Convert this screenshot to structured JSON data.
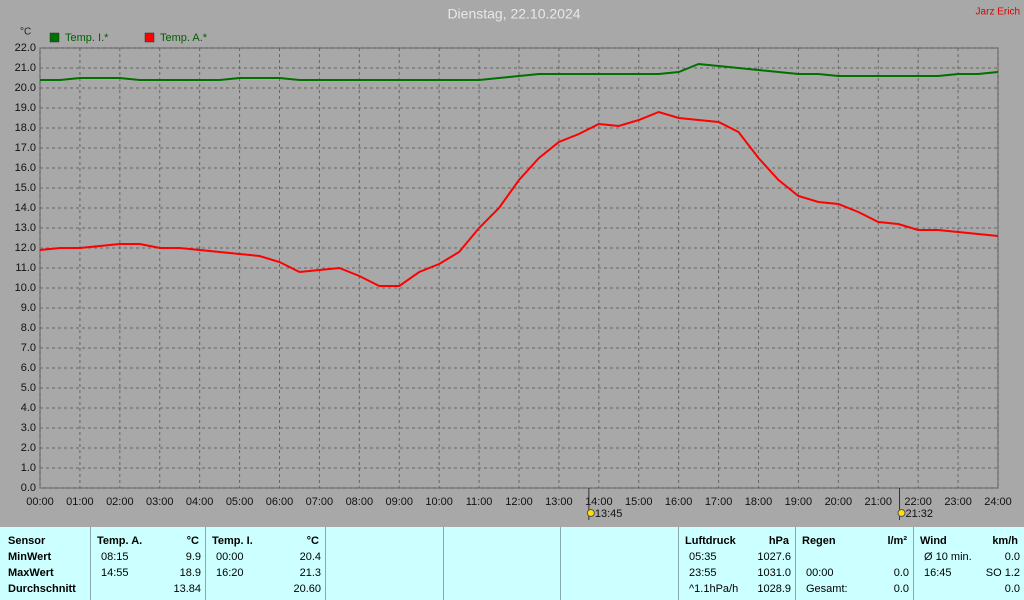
{
  "chart_data": {
    "type": "line",
    "title": "Dienstag, 22.10.2024",
    "author": "Jarz Erich",
    "y_unit": "°C",
    "x": [
      0,
      0.5,
      1,
      1.5,
      2,
      2.5,
      3,
      3.5,
      4,
      4.5,
      5,
      5.5,
      6,
      6.5,
      7,
      7.5,
      8,
      8.5,
      9,
      9.5,
      10,
      10.5,
      11,
      11.5,
      12,
      12.5,
      13,
      13.5,
      14,
      14.5,
      15,
      15.5,
      16,
      16.5,
      17,
      17.5,
      18,
      18.5,
      19,
      19.5,
      20,
      20.5,
      21,
      21.5,
      22,
      22.5,
      23,
      23.5,
      24
    ],
    "series": [
      {
        "name": "Temp. I.*",
        "color": "#007000",
        "values": [
          20.4,
          20.4,
          20.5,
          20.5,
          20.5,
          20.4,
          20.4,
          20.4,
          20.4,
          20.4,
          20.5,
          20.5,
          20.5,
          20.4,
          20.4,
          20.4,
          20.4,
          20.4,
          20.4,
          20.4,
          20.4,
          20.4,
          20.4,
          20.5,
          20.6,
          20.7,
          20.7,
          20.7,
          20.7,
          20.7,
          20.7,
          20.7,
          20.8,
          21.2,
          21.1,
          21.0,
          20.9,
          20.8,
          20.7,
          20.7,
          20.6,
          20.6,
          20.6,
          20.6,
          20.6,
          20.6,
          20.7,
          20.7,
          20.8
        ]
      },
      {
        "name": "Temp. A.*",
        "color": "#ff0000",
        "values": [
          11.9,
          12.0,
          12.0,
          12.1,
          12.2,
          12.2,
          12.0,
          12.0,
          11.9,
          11.8,
          11.7,
          11.6,
          11.3,
          10.8,
          10.9,
          11.0,
          10.6,
          10.1,
          10.1,
          10.8,
          11.2,
          11.8,
          13.0,
          14.0,
          15.4,
          16.5,
          17.3,
          17.7,
          18.2,
          18.1,
          18.4,
          18.8,
          18.5,
          18.4,
          18.3,
          17.8,
          16.5,
          15.4,
          14.6,
          14.3,
          14.2,
          13.8,
          13.3,
          13.2,
          12.9,
          12.9,
          12.8,
          12.7,
          12.6
        ]
      }
    ],
    "xlim": [
      0,
      24
    ],
    "xticks": [
      {
        "value": 0,
        "label": "00:00"
      },
      {
        "value": 1,
        "label": "01:00"
      },
      {
        "value": 2,
        "label": "02:00"
      },
      {
        "value": 3,
        "label": "03:00"
      },
      {
        "value": 4,
        "label": "04:00"
      },
      {
        "value": 5,
        "label": "05:00"
      },
      {
        "value": 6,
        "label": "06:00"
      },
      {
        "value": 7,
        "label": "07:00"
      },
      {
        "value": 8,
        "label": "08:00"
      },
      {
        "value": 9,
        "label": "09:00"
      },
      {
        "value": 10,
        "label": "10:00"
      },
      {
        "value": 11,
        "label": "11:00"
      },
      {
        "value": 12,
        "label": "12:00"
      },
      {
        "value": 13,
        "label": "13:00"
      },
      {
        "value": 14,
        "label": "14:00"
      },
      {
        "value": 15,
        "label": "15:00"
      },
      {
        "value": 16,
        "label": "16:00"
      },
      {
        "value": 17,
        "label": "17:00"
      },
      {
        "value": 18,
        "label": "18:00"
      },
      {
        "value": 19,
        "label": "19:00"
      },
      {
        "value": 20,
        "label": "20:00"
      },
      {
        "value": 21,
        "label": "21:00"
      },
      {
        "value": 22,
        "label": "22:00"
      },
      {
        "value": 23,
        "label": "23:00"
      },
      {
        "value": 24,
        "label": "24:00"
      }
    ],
    "ylim": [
      0,
      22
    ],
    "yticks": [
      {
        "value": 0,
        "label": "0.0"
      },
      {
        "value": 1,
        "label": "1.0"
      },
      {
        "value": 2,
        "label": "2.0"
      },
      {
        "value": 3,
        "label": "3.0"
      },
      {
        "value": 4,
        "label": "4.0"
      },
      {
        "value": 5,
        "label": "5.0"
      },
      {
        "value": 6,
        "label": "6.0"
      },
      {
        "value": 7,
        "label": "7.0"
      },
      {
        "value": 8,
        "label": "8.0"
      },
      {
        "value": 9,
        "label": "9.0"
      },
      {
        "value": 10,
        "label": "10.0"
      },
      {
        "value": 11,
        "label": "11.0"
      },
      {
        "value": 12,
        "label": "12.0"
      },
      {
        "value": 13,
        "label": "13.0"
      },
      {
        "value": 14,
        "label": "14.0"
      },
      {
        "value": 15,
        "label": "15.0"
      },
      {
        "value": 16,
        "label": "16.0"
      },
      {
        "value": 17,
        "label": "17.0"
      },
      {
        "value": 18,
        "label": "18.0"
      },
      {
        "value": 19,
        "label": "19.0"
      },
      {
        "value": 20,
        "label": "20.0"
      },
      {
        "value": 21,
        "label": "21.0"
      },
      {
        "value": 22,
        "label": "22.0"
      }
    ],
    "grid": true,
    "annotations": [
      {
        "value": 13.75,
        "label": "13:45"
      },
      {
        "value": 21.533,
        "label": "21:32"
      }
    ]
  },
  "table": {
    "row_labels": [
      "Sensor",
      "MinWert",
      "MaxWert",
      "Durchschnitt"
    ],
    "panels": [
      {
        "name": "Temp. A.",
        "unit": "°C",
        "rows": [
          {
            "time": "08:15",
            "value": "9.9"
          },
          {
            "time": "14:55",
            "value": "18.9"
          },
          {
            "value": "13.84"
          }
        ]
      },
      {
        "name": "Temp. I.",
        "unit": "°C",
        "rows": [
          {
            "time": "00:00",
            "value": "20.4"
          },
          {
            "time": "16:20",
            "value": "21.3"
          },
          {
            "value": "20.60"
          }
        ]
      },
      {
        "name": "Luftdruck",
        "unit": "hPa",
        "rows": [
          {
            "time": "05:35",
            "value": "1027.6"
          },
          {
            "time": "23:55",
            "value": "1031.0"
          },
          {
            "time": "^1.1hPa/h",
            "value": "1028.9"
          }
        ]
      },
      {
        "name": "Regen",
        "unit": "l/m²",
        "rows": [
          null,
          {
            "time": "00:00",
            "value": "0.0"
          },
          {
            "time": "Gesamt:",
            "value": "0.0"
          }
        ]
      },
      {
        "name": "Wind",
        "unit": "km/h",
        "rows": [
          {
            "time": "Ø 10 min.",
            "value": "0.0"
          },
          {
            "time": "16:45",
            "value": "SO 1.2"
          },
          {
            "value": "0.0"
          }
        ]
      }
    ]
  }
}
